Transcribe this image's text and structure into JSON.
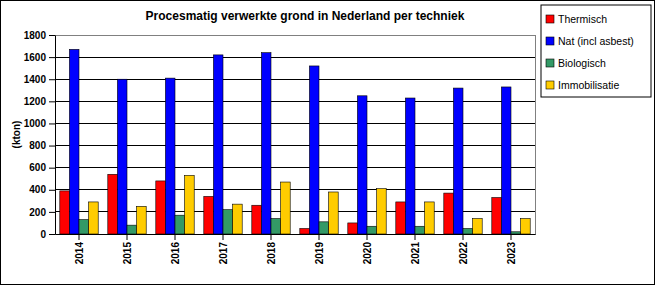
{
  "chart_data": {
    "type": "bar",
    "title": "Procesmatig verwerkte grond in Nederland per techniek",
    "y_label": "(kton)",
    "categories": [
      "2014",
      "2015",
      "2016",
      "2017",
      "2018",
      "2019",
      "2020",
      "2021",
      "2022",
      "2023"
    ],
    "series": [
      {
        "name": "Thermisch",
        "color": "#ff0000",
        "values": [
          390,
          540,
          480,
          340,
          260,
          50,
          100,
          290,
          370,
          330
        ]
      },
      {
        "name": "Nat (incl asbest)",
        "color": "#0000ff",
        "values": [
          1670,
          1400,
          1410,
          1620,
          1640,
          1520,
          1250,
          1230,
          1320,
          1330
        ]
      },
      {
        "name": "Biologisch",
        "color": "#339966",
        "values": [
          130,
          80,
          170,
          220,
          140,
          110,
          70,
          70,
          50,
          20
        ]
      },
      {
        "name": "Immobilisatie",
        "color": "#ffcc00",
        "values": [
          290,
          250,
          530,
          270,
          470,
          380,
          410,
          290,
          140,
          140
        ]
      }
    ],
    "ylim": [
      0,
      1800
    ],
    "yticks": [
      0,
      200,
      400,
      600,
      800,
      1000,
      1200,
      1400,
      1600,
      1800
    ],
    "grid": true,
    "legend": "top-right"
  }
}
